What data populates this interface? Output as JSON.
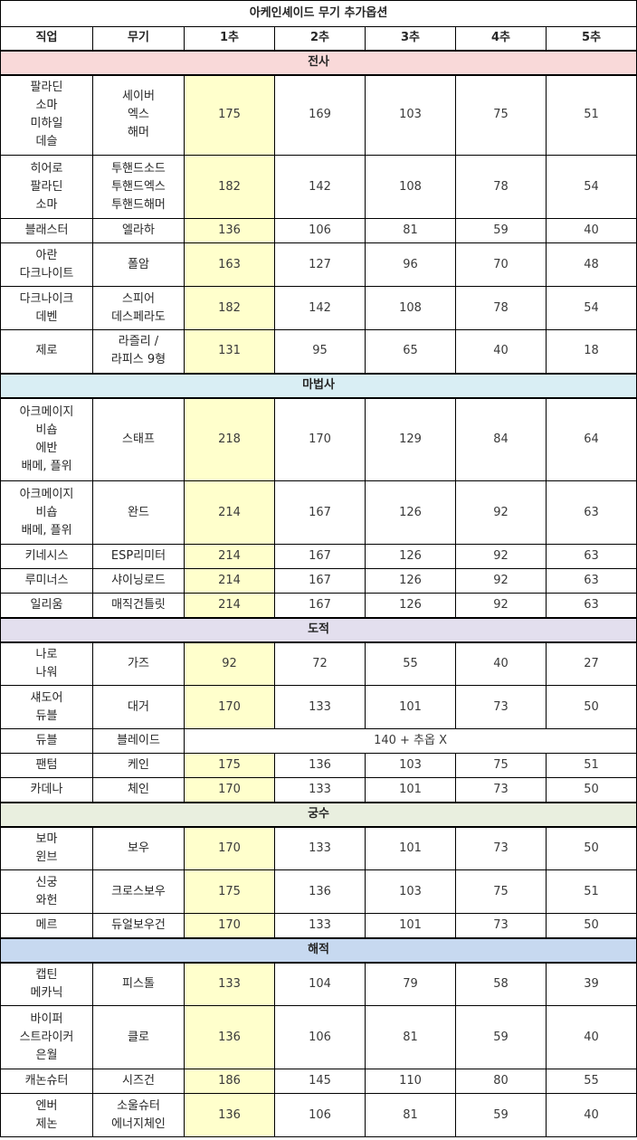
{
  "title": "아케인셰이드 무기 추가옵션",
  "headers": [
    "직업",
    "무기",
    "1추",
    "2추",
    "3추",
    "4추",
    "5추"
  ],
  "colors": {
    "highlight": "#ffffcc",
    "section_warrior": "#f9d9d9",
    "section_mage": "#d9eef4",
    "section_thief": "#e3dfee",
    "section_archer": "#e9efdf",
    "section_pirate": "#c7d9f0"
  },
  "sections": [
    {
      "name": "전사",
      "rows": [
        {
          "job": [
            "팔라딘",
            "소마",
            "미하일",
            "데슬"
          ],
          "weapon": [
            "세이버",
            "엑스",
            "해머"
          ],
          "values": [
            "175",
            "169",
            "103",
            "75",
            "51"
          ],
          "h": 89
        },
        {
          "job": [
            "히어로",
            "팔라딘",
            "소마"
          ],
          "weapon": [
            "투핸드소드",
            "투핸드엑스",
            "투핸드해머"
          ],
          "values": [
            "182",
            "142",
            "108",
            "78",
            "54"
          ],
          "h": 70
        },
        {
          "job": [
            "블래스터"
          ],
          "weapon": [
            "엘라하"
          ],
          "values": [
            "136",
            "106",
            "81",
            "59",
            "40"
          ],
          "h": 27
        },
        {
          "job": [
            "아란",
            "다크나이트"
          ],
          "weapon": [
            "폴암"
          ],
          "values": [
            "163",
            "127",
            "96",
            "70",
            "48"
          ],
          "h": 48
        },
        {
          "job": [
            "다크나이크",
            "데벤"
          ],
          "weapon": [
            "스피어",
            "데스페라도"
          ],
          "values": [
            "182",
            "142",
            "108",
            "78",
            "54"
          ],
          "h": 48
        },
        {
          "job": [
            "제로"
          ],
          "weapon": [
            "라즐리 /",
            "라피스 9형"
          ],
          "values": [
            "131",
            "95",
            "65",
            "40",
            "18"
          ],
          "h": 48
        }
      ]
    },
    {
      "name": "마법사",
      "rows": [
        {
          "job": [
            "아크메이지",
            "비숍",
            "에반",
            "배메, 플위"
          ],
          "weapon": [
            "스태프"
          ],
          "values": [
            "218",
            "170",
            "129",
            "84",
            "64"
          ],
          "h": 92
        },
        {
          "job": [
            "아크메이지",
            "비숍",
            "배메, 플위"
          ],
          "weapon": [
            "완드"
          ],
          "values": [
            "214",
            "167",
            "126",
            "92",
            "63"
          ],
          "h": 70
        },
        {
          "job": [
            "키네시스"
          ],
          "weapon": [
            "ESP리미터"
          ],
          "values": [
            "214",
            "167",
            "126",
            "92",
            "63"
          ],
          "h": 27
        },
        {
          "job": [
            "루미너스"
          ],
          "weapon": [
            "샤이닝로드"
          ],
          "values": [
            "214",
            "167",
            "126",
            "92",
            "63"
          ],
          "h": 27
        },
        {
          "job": [
            "일리움"
          ],
          "weapon": [
            "매직건틀릿"
          ],
          "values": [
            "214",
            "167",
            "126",
            "92",
            "63"
          ],
          "h": 27
        }
      ]
    },
    {
      "name": "도적",
      "rows": [
        {
          "job": [
            "나로",
            "나워"
          ],
          "weapon": [
            "가즈"
          ],
          "values": [
            "92",
            "72",
            "55",
            "40",
            "27"
          ],
          "h": 48
        },
        {
          "job": [
            "섀도어",
            "듀블"
          ],
          "weapon": [
            "대거"
          ],
          "values": [
            "170",
            "133",
            "101",
            "73",
            "50"
          ],
          "h": 48
        },
        {
          "job": [
            "듀블"
          ],
          "weapon": [
            "블레이드"
          ],
          "merged": "140 + 추옵 X",
          "h": 27
        },
        {
          "job": [
            "팬텀"
          ],
          "weapon": [
            "케인"
          ],
          "values": [
            "175",
            "136",
            "103",
            "75",
            "51"
          ],
          "h": 27
        },
        {
          "job": [
            "카데나"
          ],
          "weapon": [
            "체인"
          ],
          "values": [
            "170",
            "133",
            "101",
            "73",
            "50"
          ],
          "h": 27
        }
      ]
    },
    {
      "name": "궁수",
      "rows": [
        {
          "job": [
            "보마",
            "윈브"
          ],
          "weapon": [
            "보우"
          ],
          "values": [
            "170",
            "133",
            "101",
            "73",
            "50"
          ],
          "h": 48
        },
        {
          "job": [
            "신궁",
            "와헌"
          ],
          "weapon": [
            "크로스보우"
          ],
          "values": [
            "175",
            "136",
            "103",
            "75",
            "51"
          ],
          "h": 48
        },
        {
          "job": [
            "메르"
          ],
          "weapon": [
            "듀얼보우건"
          ],
          "values": [
            "170",
            "133",
            "101",
            "73",
            "50"
          ],
          "h": 27
        }
      ]
    },
    {
      "name": "해적",
      "rows": [
        {
          "job": [
            "캡틴",
            "메카닉"
          ],
          "weapon": [
            "피스톨"
          ],
          "values": [
            "133",
            "104",
            "79",
            "58",
            "39"
          ],
          "h": 48
        },
        {
          "job": [
            "바이퍼",
            "스트라이커",
            "은월"
          ],
          "weapon": [
            "클로"
          ],
          "values": [
            "136",
            "106",
            "81",
            "59",
            "40"
          ],
          "h": 70
        },
        {
          "job": [
            "캐논슈터"
          ],
          "weapon": [
            "시즈건"
          ],
          "values": [
            "186",
            "145",
            "110",
            "80",
            "55"
          ],
          "h": 27
        },
        {
          "job": [
            "엔버",
            "제논"
          ],
          "weapon": [
            "소울슈터",
            "에너지체인"
          ],
          "values": [
            "136",
            "106",
            "81",
            "59",
            "40"
          ],
          "h": 48
        }
      ]
    }
  ]
}
